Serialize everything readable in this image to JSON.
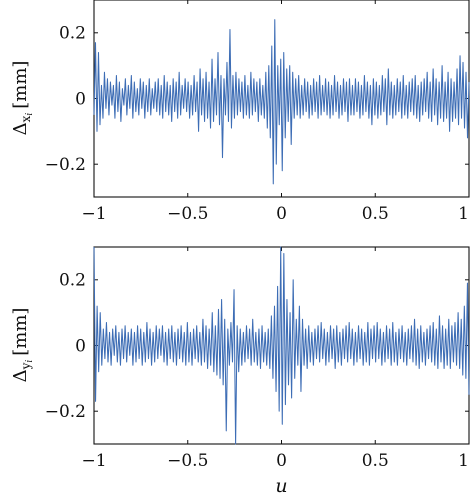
{
  "chart_data": [
    {
      "type": "line",
      "ylabel_main": "Δ",
      "ylabel_sub": "x",
      "ylabel_subsub": "i",
      "ylabel_unit": "[mm]",
      "xlim": [
        -1,
        1
      ],
      "ylim": [
        -0.3,
        0.3
      ],
      "xticks": [
        -1,
        -0.5,
        0,
        0.5,
        1
      ],
      "yticks": [
        -0.2,
        0,
        0.2
      ],
      "xtick_labels": [
        "−1",
        "−0.5",
        "0",
        "0.5",
        "1"
      ],
      "ytick_labels": [
        "−0.2",
        "0",
        "0.2"
      ],
      "grid": false,
      "color": "#3d6db5",
      "series": [
        {
          "x_start": -1,
          "x_end": 1,
          "values": [
            -0.05,
            0.17,
            -0.1,
            0.14,
            -0.08,
            0.04,
            -0.06,
            0.08,
            -0.03,
            0.06,
            -0.05,
            0.05,
            -0.02,
            0.04,
            -0.06,
            0.07,
            -0.04,
            0.05,
            -0.07,
            0.03,
            -0.02,
            0.06,
            -0.05,
            0.04,
            -0.03,
            0.07,
            -0.06,
            0.05,
            -0.04,
            0.03,
            -0.05,
            0.06,
            -0.03,
            0.05,
            -0.06,
            0.04,
            -0.04,
            0.06,
            -0.05,
            0.03,
            -0.03,
            0.05,
            -0.04,
            0.06,
            -0.05,
            0.04,
            -0.06,
            0.07,
            -0.04,
            0.05,
            -0.05,
            0.04,
            -0.07,
            0.06,
            -0.04,
            0.05,
            -0.06,
            0.08,
            -0.05,
            0.04,
            -0.03,
            0.06,
            -0.04,
            0.05,
            -0.06,
            0.04,
            -0.05,
            0.07,
            -0.04,
            0.05,
            -0.1,
            0.09,
            -0.05,
            0.06,
            -0.07,
            0.08,
            -0.06,
            0.05,
            -0.09,
            0.12,
            -0.07,
            0.06,
            -0.05,
            0.14,
            -0.08,
            0.07,
            -0.18,
            0.06,
            -0.05,
            0.11,
            -0.07,
            0.21,
            -0.09,
            0.07,
            -0.06,
            0.08,
            -0.05,
            0.06,
            -0.04,
            0.05,
            -0.06,
            0.07,
            -0.05,
            0.04,
            -0.06,
            0.08,
            -0.05,
            0.06,
            -0.04,
            0.05,
            -0.07,
            0.06,
            -0.05,
            0.04,
            -0.06,
            0.08,
            -0.09,
            0.1,
            -0.12,
            0.16,
            -0.26,
            0.24,
            -0.2,
            0.1,
            -0.08,
            0.12,
            -0.22,
            0.14,
            -0.12,
            0.09,
            -0.07,
            0.1,
            -0.14,
            0.08,
            -0.06,
            0.06,
            -0.05,
            0.07,
            -0.06,
            0.04,
            -0.05,
            0.06,
            -0.04,
            0.05,
            -0.06,
            0.04,
            -0.05,
            0.06,
            -0.04,
            0.05,
            -0.06,
            0.07,
            -0.05,
            0.04,
            -0.04,
            0.06,
            -0.05,
            0.05,
            -0.06,
            0.04,
            -0.05,
            0.07,
            -0.04,
            0.05,
            -0.06,
            0.04,
            -0.05,
            0.06,
            -0.04,
            0.05,
            -0.07,
            0.06,
            -0.05,
            0.04,
            -0.05,
            0.06,
            -0.04,
            0.05,
            -0.06,
            0.04,
            -0.05,
            0.07,
            -0.04,
            0.05,
            -0.06,
            0.04,
            -0.08,
            0.06,
            -0.05,
            0.05,
            -0.06,
            0.04,
            -0.05,
            0.07,
            -0.04,
            0.06,
            -0.08,
            0.09,
            -0.05,
            0.05,
            -0.06,
            0.04,
            -0.05,
            0.06,
            -0.04,
            0.05,
            -0.06,
            0.07,
            -0.05,
            0.04,
            -0.06,
            0.05,
            -0.04,
            0.06,
            -0.05,
            0.07,
            -0.06,
            0.04,
            -0.07,
            0.05,
            -0.05,
            0.06,
            -0.04,
            0.08,
            -0.06,
            0.05,
            -0.07,
            0.09,
            -0.05,
            0.06,
            -0.08,
            0.05,
            -0.06,
            0.1,
            -0.07,
            0.05,
            -0.06,
            0.08,
            -0.1,
            0.06,
            -0.07,
            0.05,
            -0.06,
            0.09,
            -0.08,
            0.13,
            -0.06,
            0.11,
            -0.09,
            0.08,
            -0.12,
            0.05
          ]
        }
      ]
    },
    {
      "type": "line",
      "ylabel_main": "Δ",
      "ylabel_sub": "y",
      "ylabel_subsub": "i",
      "ylabel_unit": "[mm]",
      "xlabel": "u",
      "xlim": [
        -1,
        1
      ],
      "ylim": [
        -0.3,
        0.3
      ],
      "xticks": [
        -1,
        -0.5,
        0,
        0.5,
        1
      ],
      "yticks": [
        -0.2,
        0,
        0.2
      ],
      "xtick_labels": [
        "−1",
        "−0.5",
        "0",
        "0.5",
        "1"
      ],
      "ytick_labels": [
        "−0.2",
        "0",
        "0.2"
      ],
      "grid": false,
      "color": "#3d6db5",
      "series": [
        {
          "x_start": -1,
          "x_end": 1,
          "values": [
            0.3,
            -0.17,
            0.12,
            -0.08,
            0.1,
            -0.06,
            0.05,
            -0.04,
            0.07,
            -0.05,
            0.04,
            -0.06,
            0.05,
            -0.03,
            0.06,
            -0.05,
            0.04,
            -0.06,
            0.05,
            -0.04,
            0.06,
            -0.05,
            0.04,
            -0.03,
            0.05,
            -0.06,
            0.04,
            -0.05,
            0.06,
            -0.04,
            0.05,
            -0.06,
            0.04,
            -0.05,
            0.07,
            -0.04,
            0.05,
            -0.06,
            0.04,
            -0.05,
            0.06,
            -0.04,
            0.05,
            -0.03,
            0.06,
            -0.05,
            0.04,
            -0.06,
            0.05,
            -0.04,
            0.06,
            -0.05,
            0.04,
            -0.06,
            0.05,
            -0.04,
            0.06,
            -0.05,
            0.04,
            -0.06,
            0.07,
            -0.05,
            0.04,
            -0.06,
            0.05,
            -0.04,
            0.06,
            -0.05,
            0.04,
            -0.06,
            0.08,
            -0.05,
            0.06,
            -0.07,
            0.05,
            -0.06,
            0.1,
            -0.08,
            0.06,
            -0.09,
            0.11,
            -0.1,
            0.14,
            -0.12,
            0.08,
            -0.26,
            0.05,
            -0.06,
            0.07,
            -0.05,
            0.17,
            -0.3,
            0.06,
            -0.08,
            0.05,
            -0.06,
            0.04,
            -0.05,
            0.06,
            -0.04,
            0.05,
            -0.06,
            0.08,
            -0.05,
            0.04,
            -0.06,
            0.05,
            -0.07,
            0.06,
            -0.05,
            0.04,
            -0.06,
            0.05,
            -0.07,
            0.09,
            -0.1,
            0.12,
            -0.14,
            0.18,
            -0.2,
            0.3,
            -0.24,
            0.28,
            -0.18,
            0.14,
            -0.12,
            0.1,
            -0.16,
            0.2,
            -0.1,
            0.08,
            -0.06,
            0.12,
            -0.14,
            0.08,
            -0.06,
            0.05,
            -0.07,
            0.06,
            -0.05,
            0.04,
            -0.06,
            0.05,
            -0.04,
            0.06,
            -0.05,
            0.07,
            -0.04,
            0.05,
            -0.06,
            0.04,
            -0.05,
            0.06,
            -0.04,
            0.05,
            -0.07,
            0.06,
            -0.05,
            0.04,
            -0.06,
            0.05,
            -0.04,
            0.06,
            -0.05,
            0.07,
            -0.04,
            0.05,
            -0.06,
            0.04,
            -0.05,
            0.06,
            -0.04,
            0.05,
            -0.06,
            0.04,
            -0.05,
            0.07,
            -0.06,
            0.05,
            -0.04,
            0.06,
            -0.05,
            0.07,
            -0.04,
            0.05,
            -0.06,
            0.04,
            -0.05,
            0.06,
            -0.04,
            0.05,
            -0.06,
            0.07,
            -0.05,
            0.04,
            -0.06,
            0.05,
            -0.04,
            0.06,
            -0.05,
            0.04,
            -0.06,
            0.05,
            -0.04,
            0.06,
            -0.05,
            0.08,
            -0.06,
            0.05,
            -0.07,
            0.06,
            -0.05,
            0.04,
            -0.06,
            0.05,
            -0.04,
            0.06,
            -0.05,
            0.07,
            -0.06,
            0.05,
            -0.07,
            0.09,
            -0.05,
            0.06,
            -0.07,
            0.05,
            -0.06,
            0.08,
            -0.07,
            0.06,
            -0.05,
            0.07,
            -0.06,
            0.1,
            -0.07,
            0.08,
            -0.09,
            0.12,
            -0.1,
            0.19,
            -0.15
          ]
        }
      ]
    }
  ]
}
